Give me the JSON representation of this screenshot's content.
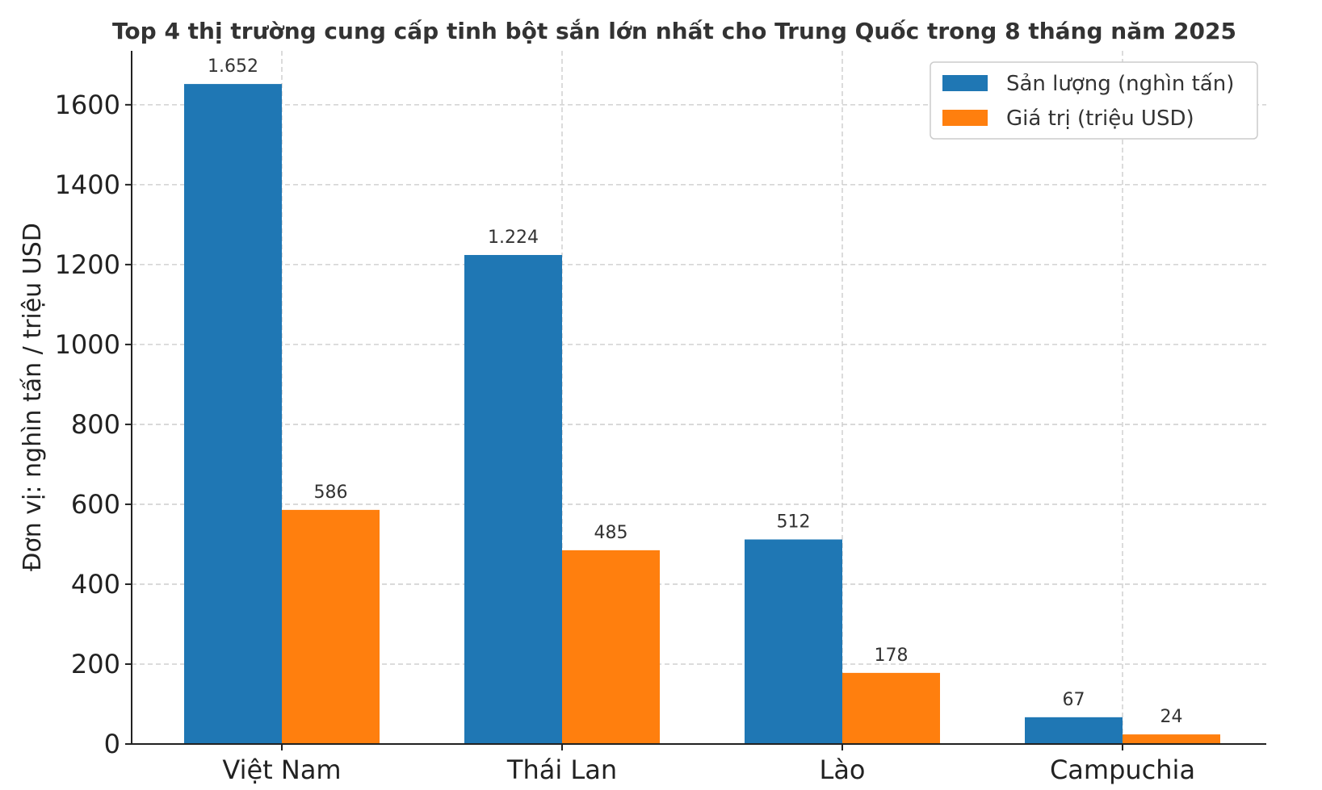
{
  "chart_data": {
    "type": "bar",
    "title": "Top 4 thị trường cung cấp tinh bột sắn lớn nhất cho Trung Quốc trong 8 tháng năm 2025",
    "xlabel": "",
    "ylabel": "Đơn vị: nghìn tấn / triệu USD",
    "categories": [
      "Việt Nam",
      "Thái Lan",
      "Lào",
      "Campuchia"
    ],
    "series": [
      {
        "name": "Sản lượng (nghìn tấn)",
        "values": [
          1652,
          1224,
          512,
          67
        ],
        "labels": [
          "1.652",
          "1.224",
          "512",
          "67"
        ],
        "color": "#1f77b4"
      },
      {
        "name": "Giá trị (triệu USD)",
        "values": [
          586,
          485,
          178,
          24
        ],
        "labels": [
          "586",
          "485",
          "178",
          "24"
        ],
        "color": "#ff7f0e"
      }
    ],
    "ylim": [
      0,
      1735
    ],
    "yticks": [
      0,
      200,
      400,
      600,
      800,
      1000,
      1200,
      1400,
      1600
    ],
    "grid": true,
    "legend_position": "top-right"
  }
}
